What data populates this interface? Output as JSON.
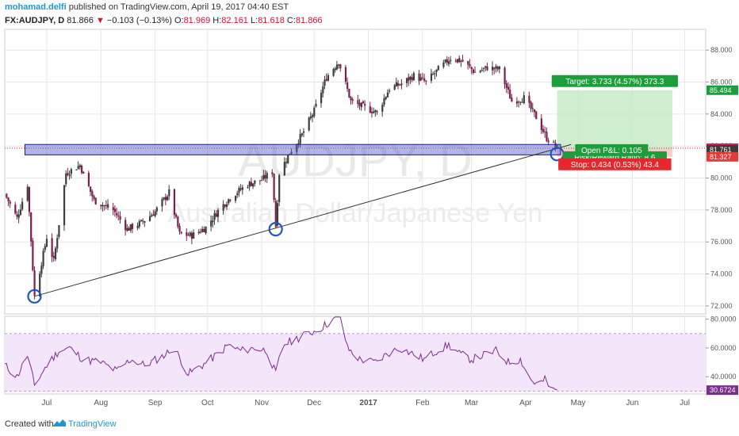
{
  "header": {
    "author": "mohamad.delfi",
    "published": "published on TradingView.com, April 19, 2017 04:40 EST",
    "symbol": "FX:AUDJPY, D",
    "last": "81.866",
    "change": "−0.103 (−0.13%)",
    "o_label": "O:",
    "o_value": "81.969",
    "h_label": "H:",
    "h_value": "82.161",
    "l_label": "L:",
    "l_value": "81.618",
    "c_label": "C:",
    "c_value": "81.866"
  },
  "watermark": {
    "symbol": "AUDJPY, D",
    "description": "Australian Dollar/Japanese Yen"
  },
  "chart_data": {
    "type": "candlestick",
    "price_ticks": [
      "88.000",
      "86.000",
      "84.000",
      "82.000",
      "80.000",
      "78.000",
      "76.000",
      "74.000",
      "72.000"
    ],
    "price_tick_values": [
      88,
      86,
      84,
      82,
      80,
      78,
      76,
      74,
      72
    ],
    "ylim": [
      71.5,
      89.3
    ],
    "x_labels": [
      "Jul",
      "Aug",
      "Sep",
      "Oct",
      "Nov",
      "Dec",
      "2017",
      "Feb",
      "Mar",
      "Apr",
      "May",
      "Jun",
      "Jul"
    ],
    "x_label_dates": [
      "2016-07-01",
      "2016-08-01",
      "2016-09-01",
      "2016-10-01",
      "2016-11-01",
      "2016-12-01",
      "2017-01-01",
      "2017-02-01",
      "2017-03-01",
      "2017-04-01",
      "2017-05-01",
      "2017-06-01",
      "2017-07-01"
    ],
    "x_range": [
      "2016-06-07",
      "2017-07-13"
    ],
    "price_path": [
      [
        "2016-06-07",
        79.0
      ],
      [
        "2016-06-14",
        77.5
      ],
      [
        "2016-06-20",
        79.6
      ],
      [
        "2016-06-24",
        72.6
      ],
      [
        "2016-07-01",
        76.3
      ],
      [
        "2016-07-05",
        74.8
      ],
      [
        "2016-07-12",
        80.3
      ],
      [
        "2016-07-20",
        80.8
      ],
      [
        "2016-07-28",
        78.6
      ],
      [
        "2016-08-08",
        78.0
      ],
      [
        "2016-08-16",
        76.8
      ],
      [
        "2016-08-24",
        77.2
      ],
      [
        "2016-09-01",
        77.9
      ],
      [
        "2016-09-09",
        79.1
      ],
      [
        "2016-09-15",
        76.5
      ],
      [
        "2016-09-22",
        76.4
      ],
      [
        "2016-09-30",
        76.9
      ],
      [
        "2016-10-08",
        78.1
      ],
      [
        "2016-10-15",
        78.9
      ],
      [
        "2016-10-24",
        79.6
      ],
      [
        "2016-11-01",
        79.9
      ],
      [
        "2016-11-07",
        80.4
      ],
      [
        "2016-11-09",
        77.0
      ],
      [
        "2016-11-11",
        80.3
      ],
      [
        "2016-11-17",
        81.6
      ],
      [
        "2016-11-24",
        82.7
      ],
      [
        "2016-12-01",
        84.2
      ],
      [
        "2016-12-08",
        86.3
      ],
      [
        "2016-12-15",
        87.3
      ],
      [
        "2016-12-22",
        84.8
      ],
      [
        "2016-12-30",
        84.4
      ],
      [
        "2017-01-06",
        84.1
      ],
      [
        "2017-01-13",
        85.6
      ],
      [
        "2017-01-20",
        85.9
      ],
      [
        "2017-01-27",
        86.4
      ],
      [
        "2017-02-03",
        86.0
      ],
      [
        "2017-02-10",
        86.8
      ],
      [
        "2017-02-17",
        87.5
      ],
      [
        "2017-02-24",
        87.3
      ],
      [
        "2017-03-03",
        86.6
      ],
      [
        "2017-03-10",
        86.9
      ],
      [
        "2017-03-17",
        86.8
      ],
      [
        "2017-03-24",
        84.8
      ],
      [
        "2017-03-31",
        85.0
      ],
      [
        "2017-04-07",
        83.8
      ],
      [
        "2017-04-13",
        82.5
      ],
      [
        "2017-04-19",
        81.87
      ]
    ],
    "support_zone": {
      "top": 82.1,
      "bottom": 81.45,
      "from": "2016-06-24",
      "to": "2017-04-21"
    },
    "trendline": {
      "from": [
        "2016-06-24",
        72.6
      ],
      "to": [
        "2017-04-27",
        82.1
      ]
    },
    "circles": [
      [
        "2016-06-24",
        72.6
      ],
      [
        "2016-11-09",
        76.8
      ],
      [
        "2017-04-19",
        81.5
      ]
    ],
    "target_zone": {
      "top": 85.494,
      "bottom": 81.866,
      "from": "2017-04-19",
      "to": "2017-06-24"
    },
    "stop_zone": {
      "top": 81.866,
      "bottom": 81.327,
      "from": "2017-04-19",
      "to": "2017-06-24"
    },
    "price_markers": [
      {
        "value": 85.494,
        "label": "85.494",
        "color": "#1b9e3e"
      },
      {
        "value": 81.866,
        "label": "81.866",
        "color": "#d81b60"
      },
      {
        "value": 81.761,
        "label": "81.761",
        "color": "#3a3a3a"
      },
      {
        "value": 81.327,
        "label": "81.327",
        "color": "#e53935"
      }
    ],
    "target_label": "Target: 3.733 (4.57%) 373.3",
    "open_pnl_label": "Open P&L: 0.105",
    "risk_reward_label": "Risk/Reward Ratio: 8.6",
    "stop_label": "Stop: 0.434 (0.53%) 43.4",
    "rsi": {
      "ticks": [
        "80.0000",
        "60.0000",
        "40.0000"
      ],
      "tick_values": [
        80,
        60,
        40
      ],
      "ylim": [
        28,
        82
      ],
      "band": [
        30,
        70
      ],
      "last_label": "30.6724",
      "last_value": 30.6724,
      "path": [
        [
          "2016-06-07",
          48
        ],
        [
          "2016-06-14",
          40
        ],
        [
          "2016-06-20",
          55
        ],
        [
          "2016-06-24",
          34
        ],
        [
          "2016-07-01",
          48
        ],
        [
          "2016-07-08",
          58
        ],
        [
          "2016-07-14",
          60
        ],
        [
          "2016-07-22",
          52
        ],
        [
          "2016-08-01",
          50
        ],
        [
          "2016-08-10",
          44
        ],
        [
          "2016-08-18",
          52
        ],
        [
          "2016-08-26",
          48
        ],
        [
          "2016-09-05",
          54
        ],
        [
          "2016-09-12",
          60
        ],
        [
          "2016-09-20",
          42
        ],
        [
          "2016-09-28",
          48
        ],
        [
          "2016-10-05",
          54
        ],
        [
          "2016-10-13",
          62
        ],
        [
          "2016-10-20",
          58
        ],
        [
          "2016-10-28",
          60
        ],
        [
          "2016-11-04",
          58
        ],
        [
          "2016-11-09",
          42
        ],
        [
          "2016-11-13",
          62
        ],
        [
          "2016-11-20",
          66
        ],
        [
          "2016-11-28",
          70
        ],
        [
          "2016-12-05",
          74
        ],
        [
          "2016-12-12",
          80
        ],
        [
          "2016-12-16",
          82
        ],
        [
          "2016-12-20",
          60
        ],
        [
          "2016-12-27",
          52
        ],
        [
          "2017-01-05",
          50
        ],
        [
          "2017-01-12",
          56
        ],
        [
          "2017-01-19",
          60
        ],
        [
          "2017-01-26",
          56
        ],
        [
          "2017-02-02",
          52
        ],
        [
          "2017-02-09",
          58
        ],
        [
          "2017-02-16",
          62
        ],
        [
          "2017-02-22",
          56
        ],
        [
          "2017-03-01",
          52
        ],
        [
          "2017-03-08",
          55
        ],
        [
          "2017-03-15",
          58
        ],
        [
          "2017-03-22",
          50
        ],
        [
          "2017-03-29",
          52
        ],
        [
          "2017-04-04",
          38
        ],
        [
          "2017-04-08",
          34
        ],
        [
          "2017-04-12",
          38
        ],
        [
          "2017-04-16",
          30
        ],
        [
          "2017-04-19",
          30.67
        ]
      ]
    }
  },
  "colors": {
    "bull": "#3d3d3d",
    "bear": "#7b1f4e",
    "zone_fill": "#5060c8",
    "zone_stroke": "#1a1a8a",
    "target_fill": "#bfe8bf",
    "stop_fill": "#f7c6c6",
    "rsi_line": "#7b2d8e",
    "rsi_band": "#f3e6fb",
    "circle": "#1f55c4",
    "grid": "#e6e6e6"
  },
  "footer": {
    "created": "Created with",
    "brand": "TradingView"
  }
}
